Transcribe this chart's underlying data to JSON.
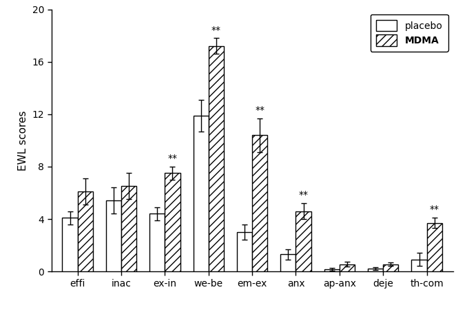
{
  "categories": [
    "effi",
    "inac",
    "ex-in",
    "we-be",
    "em-ex",
    "anx",
    "ap-anx",
    "deje",
    "th-com"
  ],
  "placebo_values": [
    4.1,
    5.4,
    4.4,
    11.9,
    3.0,
    1.3,
    0.15,
    0.2,
    0.9
  ],
  "mdma_values": [
    6.1,
    6.5,
    7.5,
    17.2,
    10.4,
    4.6,
    0.55,
    0.55,
    3.7
  ],
  "placebo_errors": [
    0.5,
    1.0,
    0.5,
    1.2,
    0.6,
    0.4,
    0.1,
    0.1,
    0.5
  ],
  "mdma_errors": [
    1.0,
    1.0,
    0.5,
    0.6,
    1.3,
    0.6,
    0.2,
    0.15,
    0.4
  ],
  "significance": [
    false,
    false,
    true,
    true,
    true,
    true,
    false,
    false,
    true
  ],
  "sig_label": "**",
  "ylabel": "EWL scores",
  "ylim": [
    0,
    20
  ],
  "yticks": [
    0,
    4,
    8,
    12,
    16,
    20
  ],
  "bar_width": 0.35,
  "placebo_color": "#ffffff",
  "edge_color": "#000000",
  "hatch": "///",
  "legend_placebo": "placebo",
  "legend_mdma": "MDMA"
}
